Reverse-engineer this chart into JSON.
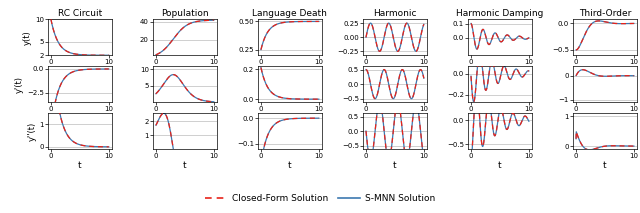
{
  "col_titles": [
    "RC Circuit",
    "Population",
    "Language Death",
    "Harmonic",
    "Harmonic Damping",
    "Third-Order"
  ],
  "row_ylabels": [
    "y(t)",
    "y'(t)",
    "y''(t)"
  ],
  "xlabel": "t",
  "legend_closed": "Closed-Form Solution",
  "legend_smnn": "S-MNN Solution",
  "closed_color": "#e8231a",
  "smnn_color": "#3d79b0",
  "grid_color": "#c8c8c8",
  "yticks": [
    [
      [
        2,
        5,
        10
      ],
      [
        -2.5,
        0.0
      ],
      [
        0,
        1
      ]
    ],
    [
      [
        20,
        40
      ],
      [
        5,
        10
      ],
      [
        1,
        2
      ]
    ],
    [
      [
        0.25,
        0.5
      ],
      [
        0.0,
        0.2
      ],
      [
        -0.1,
        0.0
      ]
    ],
    [
      [
        -0.25,
        0.0,
        0.25
      ],
      [
        -0.5,
        0.0,
        0.5
      ],
      [
        -0.5,
        0.0,
        0.5
      ]
    ],
    [
      [
        0.0,
        0.1
      ],
      [
        0.0,
        -0.2
      ],
      [
        0.0,
        -0.5
      ]
    ],
    [
      [
        0.0,
        -0.5
      ],
      [
        0,
        -1
      ],
      [
        0,
        1
      ]
    ]
  ],
  "ylims": [
    [
      [
        2,
        10
      ],
      [
        -3.5,
        0.3
      ],
      [
        -0.1,
        1.5
      ]
    ],
    [
      [
        3,
        43
      ],
      [
        0,
        11
      ],
      [
        0,
        2.6
      ]
    ],
    [
      [
        0.2,
        0.52
      ],
      [
        -0.02,
        0.22
      ],
      [
        -0.12,
        0.02
      ]
    ],
    [
      [
        -0.32,
        0.32
      ],
      [
        -0.62,
        0.62
      ],
      [
        -0.62,
        0.62
      ]
    ],
    [
      [
        -0.12,
        0.13
      ],
      [
        -0.27,
        0.07
      ],
      [
        -0.6,
        0.15
      ]
    ],
    [
      [
        -0.6,
        0.08
      ],
      [
        -1.1,
        0.4
      ],
      [
        -0.1,
        1.1
      ]
    ]
  ]
}
